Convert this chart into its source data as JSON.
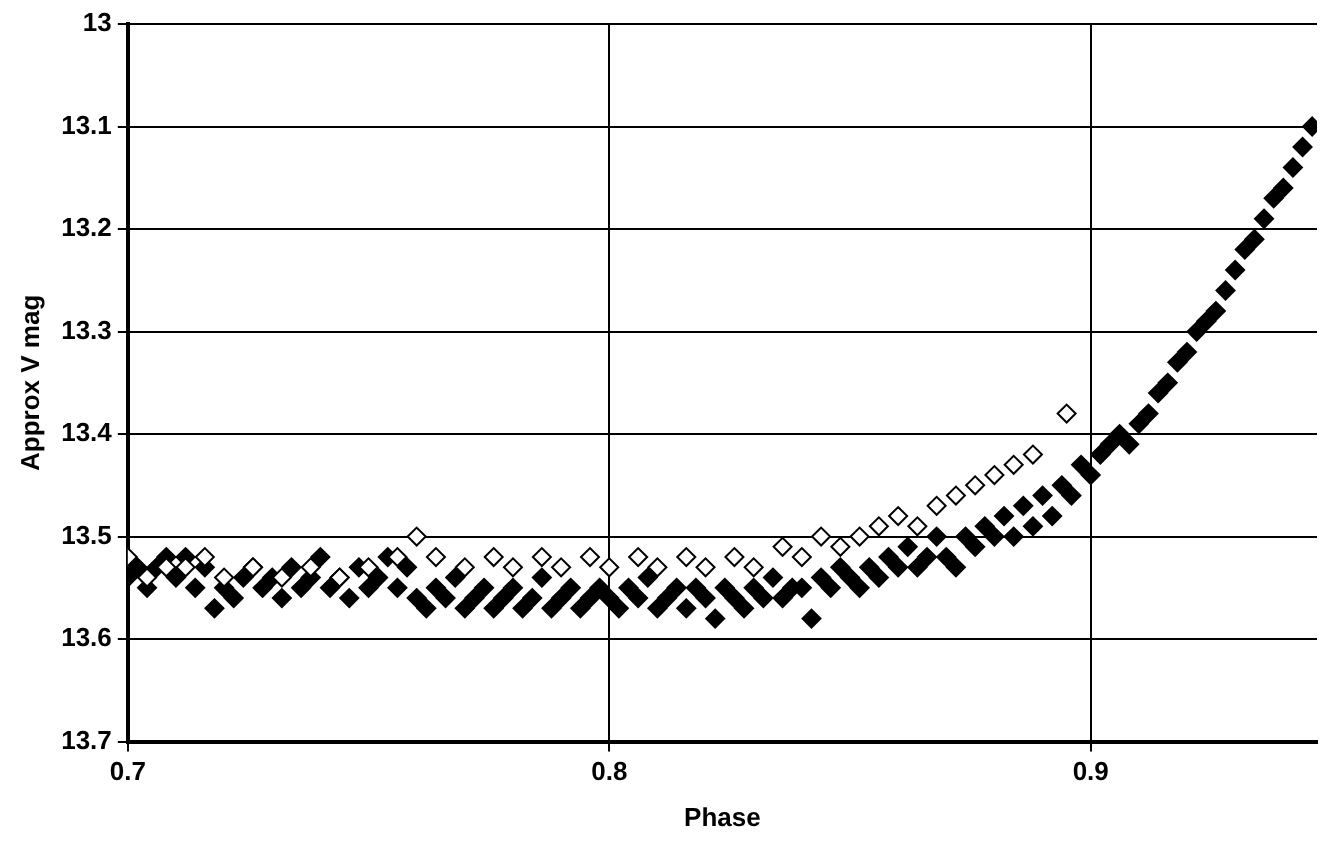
{
  "chart_data": {
    "type": "scatter",
    "xlabel": "Phase",
    "ylabel": "Approx V mag",
    "xlim": [
      0.7,
      0.947
    ],
    "xticks": [
      0.7,
      0.8,
      0.9
    ],
    "ylim": [
      13.7,
      13
    ],
    "yticks": [
      13,
      13.1,
      13.2,
      13.3,
      13.4,
      13.5,
      13.6,
      13.7
    ],
    "grid": true,
    "legend": false,
    "marker": "diamond",
    "series": [
      {
        "color": "#000000",
        "x": [
          0.7,
          0.702,
          0.704,
          0.706,
          0.708,
          0.71,
          0.712,
          0.714,
          0.716,
          0.718,
          0.72,
          0.722,
          0.724,
          0.726,
          0.728,
          0.73,
          0.732,
          0.734,
          0.736,
          0.738,
          0.74,
          0.742,
          0.744,
          0.746,
          0.748,
          0.75,
          0.752,
          0.754,
          0.756,
          0.758,
          0.76,
          0.762,
          0.764,
          0.766,
          0.768,
          0.77,
          0.772,
          0.774,
          0.776,
          0.778,
          0.78,
          0.782,
          0.784,
          0.786,
          0.788,
          0.79,
          0.792,
          0.794,
          0.796,
          0.798,
          0.8,
          0.802,
          0.804,
          0.806,
          0.808,
          0.81,
          0.812,
          0.814,
          0.816,
          0.818,
          0.82,
          0.822,
          0.824,
          0.826,
          0.828,
          0.83,
          0.832,
          0.834,
          0.836,
          0.838,
          0.84,
          0.842,
          0.844,
          0.846,
          0.848,
          0.85,
          0.852,
          0.854,
          0.856,
          0.858,
          0.86,
          0.862,
          0.864,
          0.866,
          0.868,
          0.87,
          0.872,
          0.874,
          0.876,
          0.878,
          0.88,
          0.882,
          0.884,
          0.886,
          0.888,
          0.89,
          0.892,
          0.894,
          0.896,
          0.898,
          0.9,
          0.902,
          0.904,
          0.906,
          0.908,
          0.91,
          0.912,
          0.914,
          0.916,
          0.918,
          0.92,
          0.922,
          0.924,
          0.926,
          0.928,
          0.93,
          0.932,
          0.934,
          0.936,
          0.938,
          0.94,
          0.942,
          0.944,
          0.946
        ],
        "values": [
          13.54,
          13.53,
          13.55,
          13.53,
          13.52,
          13.54,
          13.52,
          13.55,
          13.53,
          13.57,
          13.55,
          13.56,
          13.54,
          13.53,
          13.55,
          13.54,
          13.56,
          13.53,
          13.55,
          13.54,
          13.52,
          13.55,
          13.54,
          13.56,
          13.53,
          13.55,
          13.54,
          13.52,
          13.55,
          13.53,
          13.56,
          13.57,
          13.55,
          13.56,
          13.54,
          13.57,
          13.56,
          13.55,
          13.57,
          13.56,
          13.55,
          13.57,
          13.56,
          13.54,
          13.57,
          13.56,
          13.55,
          13.57,
          13.56,
          13.55,
          13.56,
          13.57,
          13.55,
          13.56,
          13.54,
          13.57,
          13.56,
          13.55,
          13.57,
          13.55,
          13.56,
          13.58,
          13.55,
          13.56,
          13.57,
          13.55,
          13.56,
          13.54,
          13.56,
          13.55,
          13.55,
          13.58,
          13.54,
          13.55,
          13.53,
          13.54,
          13.55,
          13.53,
          13.54,
          13.52,
          13.53,
          13.51,
          13.53,
          13.52,
          13.5,
          13.52,
          13.53,
          13.5,
          13.51,
          13.49,
          13.5,
          13.48,
          13.5,
          13.47,
          13.49,
          13.46,
          13.48,
          13.45,
          13.46,
          13.43,
          13.44,
          13.42,
          13.41,
          13.4,
          13.41,
          13.39,
          13.38,
          13.36,
          13.35,
          13.33,
          13.32,
          13.3,
          13.29,
          13.28,
          13.26,
          13.24,
          13.22,
          13.21,
          13.19,
          13.17,
          13.16,
          13.14,
          13.12,
          13.1
        ]
      },
      {
        "color": "#ffffff",
        "x": [
          0.7,
          0.704,
          0.708,
          0.712,
          0.716,
          0.72,
          0.726,
          0.732,
          0.738,
          0.744,
          0.75,
          0.756,
          0.76,
          0.764,
          0.77,
          0.776,
          0.78,
          0.786,
          0.79,
          0.796,
          0.8,
          0.806,
          0.81,
          0.816,
          0.82,
          0.826,
          0.83,
          0.836,
          0.84,
          0.844,
          0.848,
          0.852,
          0.856,
          0.86,
          0.864,
          0.868,
          0.872,
          0.876,
          0.88,
          0.884,
          0.888,
          0.895
        ],
        "values": [
          13.52,
          13.54,
          13.53,
          13.53,
          13.52,
          13.54,
          13.53,
          13.54,
          13.53,
          13.54,
          13.53,
          13.52,
          13.5,
          13.52,
          13.53,
          13.52,
          13.53,
          13.52,
          13.53,
          13.52,
          13.53,
          13.52,
          13.53,
          13.52,
          13.53,
          13.52,
          13.53,
          13.51,
          13.52,
          13.5,
          13.51,
          13.5,
          13.49,
          13.48,
          13.49,
          13.47,
          13.46,
          13.45,
          13.44,
          13.43,
          13.42,
          13.38
        ]
      }
    ]
  }
}
